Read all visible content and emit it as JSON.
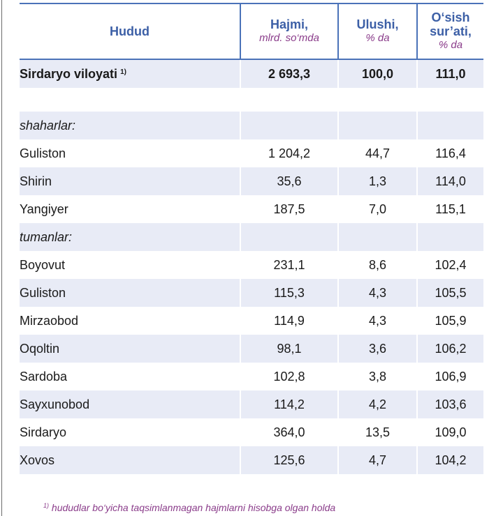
{
  "table": {
    "headers": [
      {
        "label": "Hudud",
        "unit": ""
      },
      {
        "label": "Hajmi,",
        "unit": "mlrd. so‘mda"
      },
      {
        "label": "Ulushi,",
        "unit": "% da"
      },
      {
        "label": "O‘sish sur’ati,",
        "unit": "% da"
      }
    ],
    "total": {
      "name": "Sirdaryo viloyati",
      "note": "1)",
      "volume": "2 693,3",
      "share": "100,0",
      "growth": "111,0"
    },
    "group_cities": "shaharlar:",
    "group_districts": "tumanlar:",
    "cities": [
      {
        "name": "Guliston",
        "volume": "1 204,2",
        "share": "44,7",
        "growth": "116,4"
      },
      {
        "name": "Shirin",
        "volume": "35,6",
        "share": "1,3",
        "growth": "114,0"
      },
      {
        "name": "Yangiyer",
        "volume": "187,5",
        "share": "7,0",
        "growth": "115,1"
      }
    ],
    "districts": [
      {
        "name": "Boyovut",
        "volume": "231,1",
        "share": "8,6",
        "growth": "102,4"
      },
      {
        "name": "Guliston",
        "volume": "115,3",
        "share": "4,3",
        "growth": "105,5"
      },
      {
        "name": "Mirzaobod",
        "volume": "114,9",
        "share": "4,3",
        "growth": "105,9"
      },
      {
        "name": "Oqoltin",
        "volume": "98,1",
        "share": "3,6",
        "growth": "106,2"
      },
      {
        "name": "Sardoba",
        "volume": "102,8",
        "share": "3,8",
        "growth": "106,9"
      },
      {
        "name": "Sayxunobod",
        "volume": "114,2",
        "share": "4,2",
        "growth": "103,6"
      },
      {
        "name": "Sirdaryo",
        "volume": "364,0",
        "share": "13,5",
        "growth": "109,0"
      },
      {
        "name": "Xovos",
        "volume": "125,6",
        "share": "4,7",
        "growth": "104,2"
      }
    ]
  },
  "footnote": {
    "mark": "1)",
    "text": "hududlar  bo‘yicha taqsimlanmagan hajmlarni hisobga olgan holda"
  }
}
